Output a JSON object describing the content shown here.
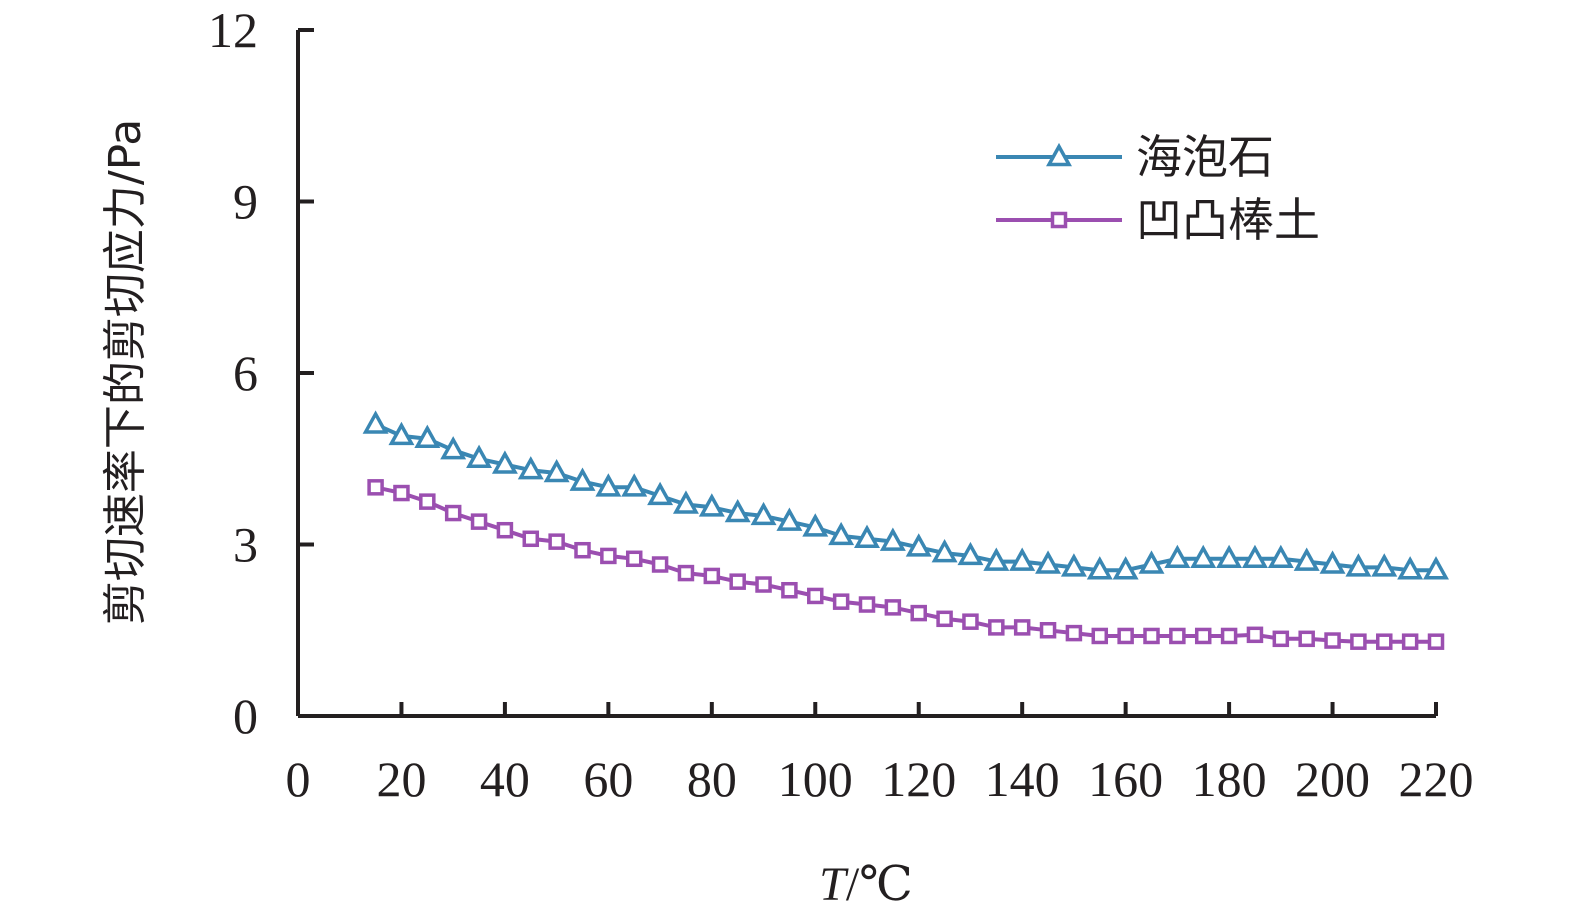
{
  "chart_data": {
    "type": "line",
    "title": "",
    "xlabel": "T/℃",
    "xlabel_italic_part": "T",
    "xlabel_rest": "/℃",
    "ylabel": "剪切速率下的剪切应力/Pa",
    "xlim": [
      0,
      220
    ],
    "ylim": [
      0,
      12
    ],
    "x_ticks": [
      0,
      20,
      40,
      60,
      80,
      100,
      120,
      140,
      160,
      180,
      200,
      220
    ],
    "x_tick_labels": [
      "0",
      "20",
      "40",
      "60",
      "80",
      "100",
      "120",
      "140",
      "160",
      "180",
      "200",
      "220"
    ],
    "y_ticks": [
      0,
      3,
      6,
      9,
      12
    ],
    "y_tick_labels": [
      "0",
      "3",
      "6",
      "9",
      "12"
    ],
    "grid": false,
    "legend_position": "top-right",
    "x": [
      15,
      20,
      25,
      30,
      35,
      40,
      45,
      50,
      55,
      60,
      65,
      70,
      75,
      80,
      85,
      90,
      95,
      100,
      105,
      110,
      115,
      120,
      125,
      130,
      135,
      140,
      145,
      150,
      155,
      160,
      165,
      170,
      175,
      180,
      185,
      190,
      195,
      200,
      205,
      210,
      215,
      220
    ],
    "series": [
      {
        "name": "海泡石",
        "color": "#3a87b3",
        "marker": "triangle",
        "values": [
          5.1,
          4.9,
          4.85,
          4.65,
          4.5,
          4.4,
          4.3,
          4.25,
          4.1,
          4.0,
          4.0,
          3.85,
          3.7,
          3.65,
          3.55,
          3.5,
          3.4,
          3.3,
          3.15,
          3.1,
          3.05,
          2.95,
          2.85,
          2.8,
          2.7,
          2.7,
          2.65,
          2.6,
          2.55,
          2.55,
          2.65,
          2.75,
          2.75,
          2.75,
          2.75,
          2.75,
          2.7,
          2.65,
          2.6,
          2.6,
          2.55,
          2.55
        ]
      },
      {
        "name": "凹凸棒土",
        "color": "#9b4fb0",
        "marker": "square",
        "values": [
          4.0,
          3.9,
          3.75,
          3.55,
          3.4,
          3.25,
          3.1,
          3.05,
          2.9,
          2.8,
          2.75,
          2.65,
          2.5,
          2.45,
          2.35,
          2.3,
          2.2,
          2.1,
          2.0,
          1.95,
          1.9,
          1.8,
          1.7,
          1.65,
          1.55,
          1.55,
          1.5,
          1.45,
          1.4,
          1.4,
          1.4,
          1.4,
          1.4,
          1.4,
          1.42,
          1.35,
          1.35,
          1.32,
          1.3,
          1.3,
          1.3,
          1.3
        ]
      }
    ]
  }
}
